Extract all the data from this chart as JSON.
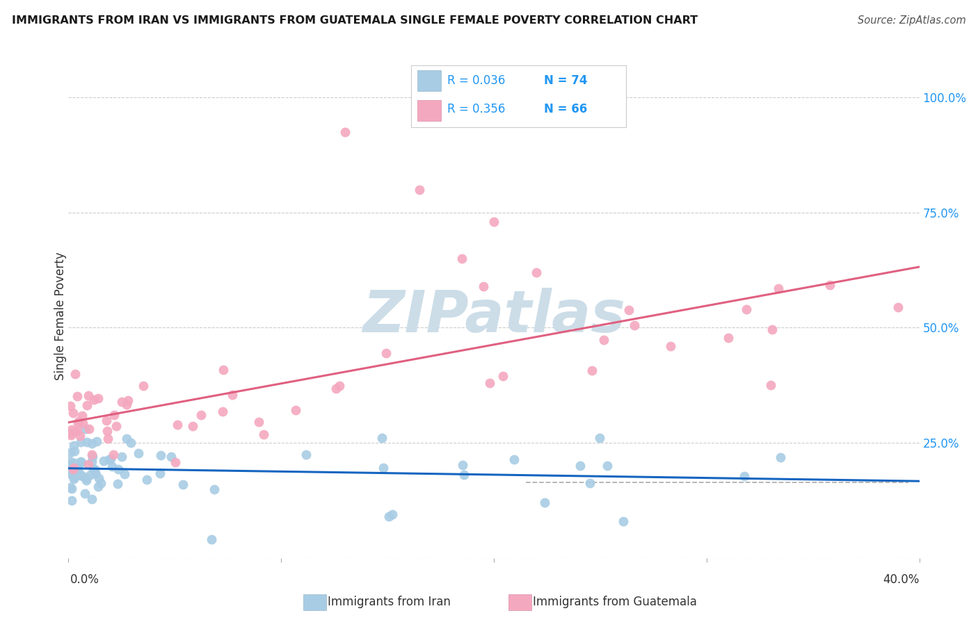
{
  "title": "IMMIGRANTS FROM IRAN VS IMMIGRANTS FROM GUATEMALA SINGLE FEMALE POVERTY CORRELATION CHART",
  "source": "Source: ZipAtlas.com",
  "ylabel": "Single Female Poverty",
  "legend_iran": "Immigrants from Iran",
  "legend_guatemala": "Immigrants from Guatemala",
  "R_iran": "0.036",
  "N_iran": "74",
  "R_guatemala": "0.356",
  "N_guatemala": "66",
  "color_iran": "#a8cce4",
  "color_guatemala": "#f4a8bf",
  "color_iran_line": "#1565c0",
  "color_guatemala_line": "#e06080",
  "color_dashed": "#b0b0b0",
  "xmin": 0.0,
  "xmax": 0.4,
  "ymin": 0.0,
  "ymax": 1.05,
  "yticks": [
    0.0,
    0.25,
    0.5,
    0.75,
    1.0
  ],
  "ytick_labels": [
    "",
    "25.0%",
    "50.0%",
    "75.0%",
    "100.0%"
  ],
  "xtick_labels_left": "0.0%",
  "xtick_labels_right": "40.0%",
  "grid_color": "#cccccc",
  "background_color": "#ffffff",
  "watermark_text": "ZIPatlas",
  "watermark_color": "#ccdde8",
  "title_color": "#1a1a1a",
  "source_color": "#555555",
  "label_color": "#333333",
  "tick_color_right": "#2196F3"
}
